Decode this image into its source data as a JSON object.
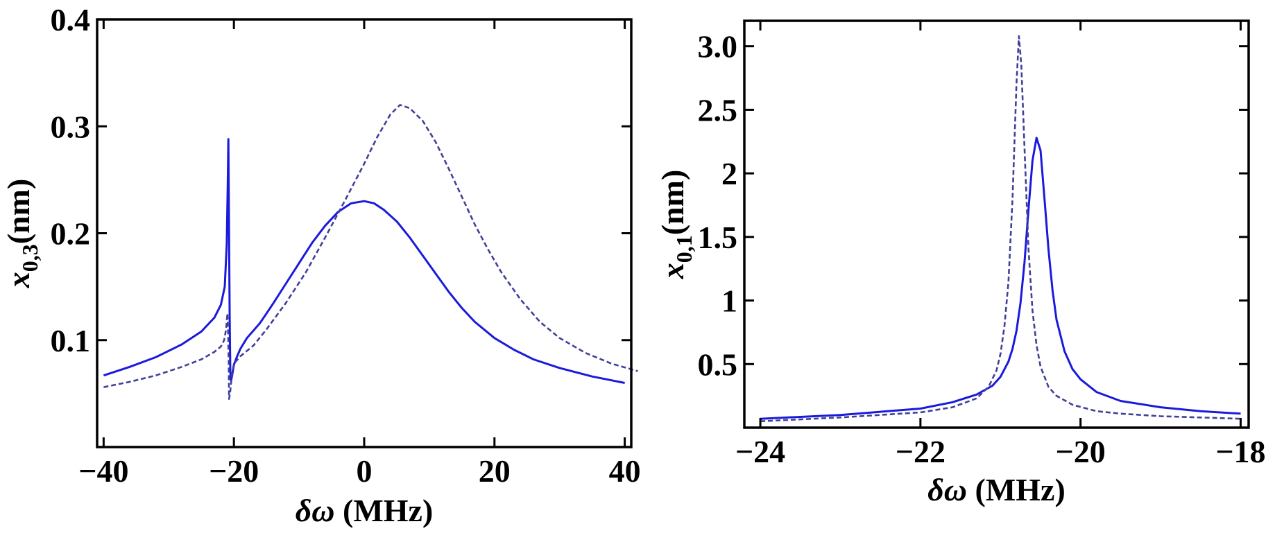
{
  "chart_data": [
    {
      "type": "line",
      "xlabel_symbol": "δω",
      "xlabel_unit": " (MHz)",
      "ylabel_symbol": "x",
      "ylabel_sub": "0,3",
      "ylabel_unit": "(nm)",
      "xlim": [
        -41,
        41
      ],
      "ylim": [
        0.0,
        0.4
      ],
      "xticks": [
        -40,
        -20,
        0,
        20,
        40
      ],
      "xtick_labels": [
        "−40",
        "−20",
        "0",
        "20",
        "40"
      ],
      "yticks": [
        0.1,
        0.2,
        0.3,
        0.4
      ],
      "ytick_labels": [
        "0.1",
        "0.2",
        "0.3",
        "0.4"
      ],
      "grid": false,
      "series": [
        {
          "style": "solid",
          "color": "#1a1adc",
          "points": [
            [
              -40,
              0.067
            ],
            [
              -36,
              0.075
            ],
            [
              -32,
              0.084
            ],
            [
              -28,
              0.096
            ],
            [
              -25,
              0.108
            ],
            [
              -23,
              0.121
            ],
            [
              -22,
              0.133
            ],
            [
              -21.4,
              0.15
            ],
            [
              -21.1,
              0.19
            ],
            [
              -20.95,
              0.245
            ],
            [
              -20.85,
              0.288
            ],
            [
              -20.75,
              0.2
            ],
            [
              -20.65,
              0.12
            ],
            [
              -20.55,
              0.07
            ],
            [
              -20.45,
              0.062
            ],
            [
              -20.3,
              0.066
            ],
            [
              -20.0,
              0.077
            ],
            [
              -19.5,
              0.085
            ],
            [
              -19,
              0.092
            ],
            [
              -18,
              0.102
            ],
            [
              -16,
              0.116
            ],
            [
              -14,
              0.134
            ],
            [
              -12,
              0.153
            ],
            [
              -10,
              0.172
            ],
            [
              -8,
              0.191
            ],
            [
              -6,
              0.207
            ],
            [
              -4,
              0.22
            ],
            [
              -2,
              0.228
            ],
            [
              0,
              0.23
            ],
            [
              1.5,
              0.228
            ],
            [
              3,
              0.222
            ],
            [
              5,
              0.211
            ],
            [
              7,
              0.196
            ],
            [
              9,
              0.179
            ],
            [
              11,
              0.162
            ],
            [
              13,
              0.145
            ],
            [
              15,
              0.13
            ],
            [
              17,
              0.117
            ],
            [
              20,
              0.102
            ],
            [
              23,
              0.091
            ],
            [
              26,
              0.082
            ],
            [
              30,
              0.074
            ],
            [
              35,
              0.066
            ],
            [
              40,
              0.06
            ]
          ]
        },
        {
          "style": "dashed",
          "color": "#40409a",
          "points": [
            [
              -40,
              0.056
            ],
            [
              -36,
              0.061
            ],
            [
              -32,
              0.067
            ],
            [
              -28,
              0.075
            ],
            [
              -25,
              0.082
            ],
            [
              -23,
              0.089
            ],
            [
              -22,
              0.094
            ],
            [
              -21.5,
              0.1
            ],
            [
              -21.2,
              0.11
            ],
            [
              -21.0,
              0.125
            ],
            [
              -20.9,
              0.11
            ],
            [
              -20.8,
              0.08
            ],
            [
              -20.75,
              0.045
            ],
            [
              -20.6,
              0.05
            ],
            [
              -20.3,
              0.068
            ],
            [
              -20.0,
              0.078
            ],
            [
              -19,
              0.085
            ],
            [
              -17,
              0.095
            ],
            [
              -15,
              0.11
            ],
            [
              -12,
              0.135
            ],
            [
              -9,
              0.163
            ],
            [
              -6,
              0.196
            ],
            [
              -3,
              0.23
            ],
            [
              0,
              0.265
            ],
            [
              2,
              0.29
            ],
            [
              4,
              0.311
            ],
            [
              5.5,
              0.32
            ],
            [
              7,
              0.317
            ],
            [
              9,
              0.305
            ],
            [
              11,
              0.285
            ],
            [
              13,
              0.26
            ],
            [
              15,
              0.234
            ],
            [
              17,
              0.208
            ],
            [
              19,
              0.185
            ],
            [
              21,
              0.164
            ],
            [
              24,
              0.138
            ],
            [
              27,
              0.117
            ],
            [
              30,
              0.102
            ],
            [
              34,
              0.088
            ],
            [
              38,
              0.078
            ],
            [
              42,
              0.071
            ]
          ]
        }
      ]
    },
    {
      "type": "line",
      "xlabel_symbol": "δω",
      "xlabel_unit": " (MHz)",
      "ylabel_symbol": "x",
      "ylabel_sub": "0,1",
      "ylabel_unit": "(nm)",
      "xlim": [
        -24.2,
        -17.9
      ],
      "ylim": [
        0.0,
        3.2
      ],
      "xticks": [
        -24,
        -22,
        -20,
        -18
      ],
      "xtick_labels": [
        "−24",
        "−22",
        "−20",
        "−18"
      ],
      "yticks": [
        0.5,
        1.0,
        1.5,
        2.0,
        2.5,
        3.0
      ],
      "ytick_labels": [
        "0.5",
        "1",
        "1.5",
        "2",
        "2.5",
        "3.0"
      ],
      "grid": false,
      "series": [
        {
          "style": "solid",
          "color": "#1a1adc",
          "points": [
            [
              -24,
              0.07
            ],
            [
              -23,
              0.1
            ],
            [
              -22,
              0.15
            ],
            [
              -21.6,
              0.2
            ],
            [
              -21.3,
              0.26
            ],
            [
              -21.1,
              0.33
            ],
            [
              -21.0,
              0.4
            ],
            [
              -20.9,
              0.52
            ],
            [
              -20.85,
              0.62
            ],
            [
              -20.8,
              0.76
            ],
            [
              -20.75,
              0.98
            ],
            [
              -20.7,
              1.3
            ],
            [
              -20.65,
              1.72
            ],
            [
              -20.6,
              2.1
            ],
            [
              -20.55,
              2.28
            ],
            [
              -20.5,
              2.18
            ],
            [
              -20.45,
              1.8
            ],
            [
              -20.4,
              1.4
            ],
            [
              -20.35,
              1.08
            ],
            [
              -20.3,
              0.85
            ],
            [
              -20.2,
              0.6
            ],
            [
              -20.1,
              0.46
            ],
            [
              -20.0,
              0.38
            ],
            [
              -19.8,
              0.28
            ],
            [
              -19.5,
              0.21
            ],
            [
              -19,
              0.16
            ],
            [
              -18.5,
              0.13
            ],
            [
              -18,
              0.11
            ]
          ]
        },
        {
          "style": "dashed",
          "color": "#40409a",
          "points": [
            [
              -24,
              0.05
            ],
            [
              -23,
              0.08
            ],
            [
              -22,
              0.12
            ],
            [
              -21.6,
              0.16
            ],
            [
              -21.3,
              0.23
            ],
            [
              -21.15,
              0.32
            ],
            [
              -21.05,
              0.45
            ],
            [
              -21.0,
              0.58
            ],
            [
              -20.95,
              0.8
            ],
            [
              -20.9,
              1.15
            ],
            [
              -20.85,
              1.8
            ],
            [
              -20.8,
              2.7
            ],
            [
              -20.77,
              3.08
            ],
            [
              -20.74,
              2.85
            ],
            [
              -20.7,
              2.2
            ],
            [
              -20.65,
              1.4
            ],
            [
              -20.6,
              0.92
            ],
            [
              -20.55,
              0.65
            ],
            [
              -20.5,
              0.48
            ],
            [
              -20.4,
              0.32
            ],
            [
              -20.3,
              0.25
            ],
            [
              -20.1,
              0.18
            ],
            [
              -19.8,
              0.13
            ],
            [
              -19.5,
              0.11
            ],
            [
              -19,
              0.09
            ],
            [
              -18.5,
              0.08
            ],
            [
              -18,
              0.07
            ]
          ]
        }
      ]
    }
  ]
}
